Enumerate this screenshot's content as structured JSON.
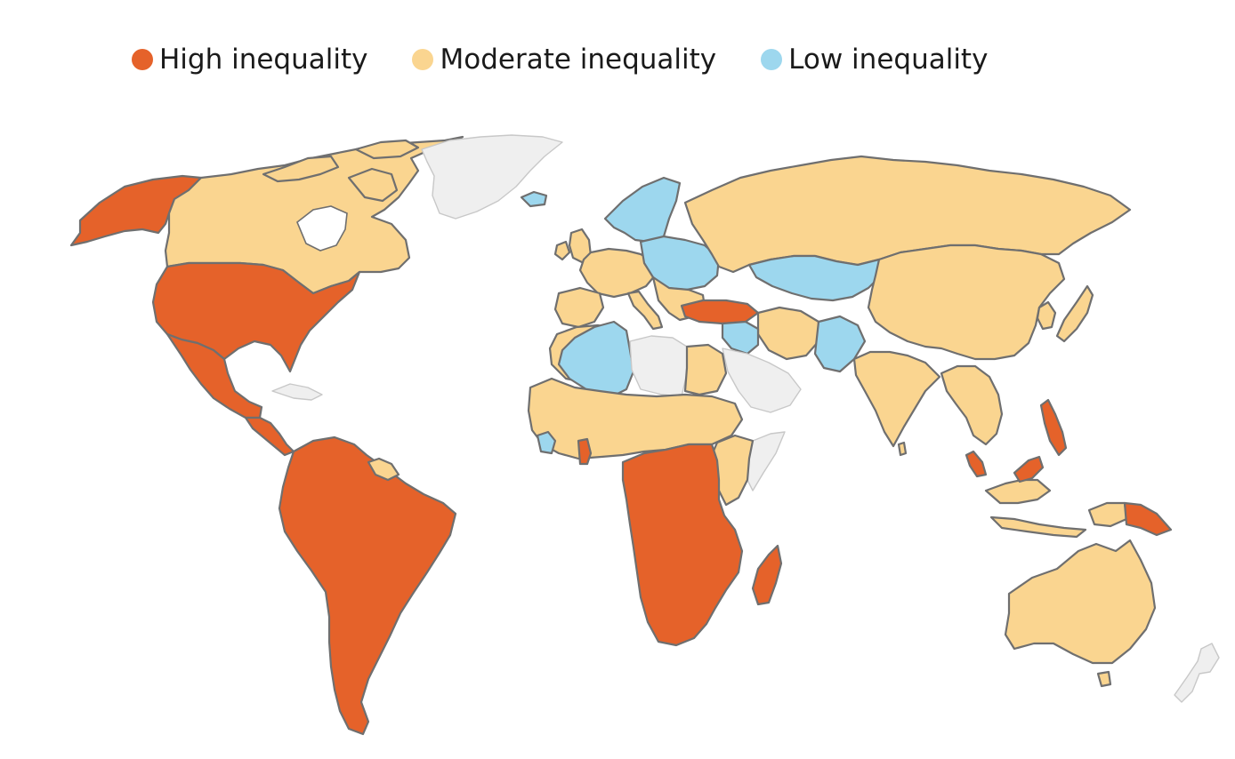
{
  "legend": {
    "items": [
      {
        "label": "High inequality",
        "color": "#e5622a",
        "key": "high"
      },
      {
        "label": "Moderate inequality",
        "color": "#fad590",
        "key": "moderate"
      },
      {
        "label": "Low inequality",
        "color": "#9dd7ee",
        "key": "low"
      }
    ]
  },
  "colors": {
    "high": "#e5622a",
    "moderate": "#fad590",
    "low": "#9dd7ee",
    "no_data": "#efefef",
    "border": "#6f6f6f"
  }
}
